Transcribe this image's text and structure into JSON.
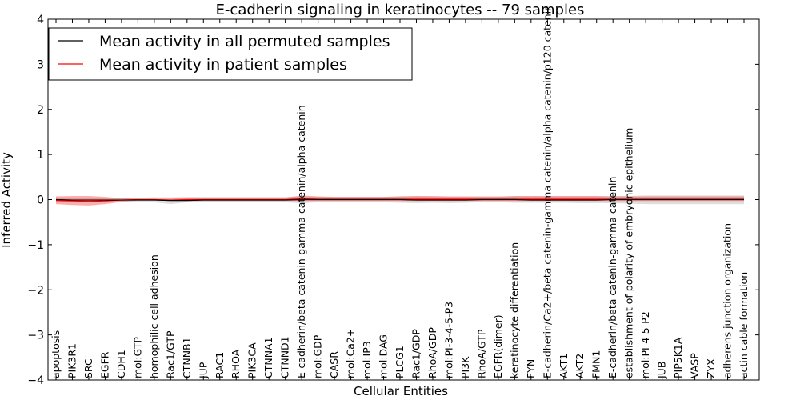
{
  "chart_data": {
    "type": "line",
    "title": "E-cadherin signaling in keratinocytes -- 79 samples",
    "xlabel": "Cellular Entities",
    "ylabel": "Inferred Activity",
    "ylim": [
      -4,
      4
    ],
    "yticks": [
      4,
      3,
      2,
      1,
      0,
      -1,
      -2,
      -3,
      -4
    ],
    "ytick_labels": [
      "4",
      "3",
      "2",
      "1",
      "0",
      "−1",
      "−2",
      "−3",
      "−4"
    ],
    "legend": {
      "location": "top-left",
      "entries": [
        {
          "label": "Mean activity in all permuted samples",
          "color": "#000000"
        },
        {
          "label": "Mean activity in patient samples",
          "color": "#ff0000"
        }
      ]
    },
    "categories": [
      "apoptosis",
      "PIK3R1",
      "SRC",
      "EGFR",
      "CDH1",
      "mol:GTP",
      "homophilic cell adhesion",
      "Rac1/GTP",
      "CTNNB1",
      "JUP",
      "RAC1",
      "RHOA",
      "PIK3CA",
      "CTNNA1",
      "CTNND1",
      "E-cadherin/beta catenin-gamma catenin/alpha catenin",
      "mol:GDP",
      "CASR",
      "mol:Ca2+",
      "mol:IP3",
      "mol:DAG",
      "PLCG1",
      "Rac1/GDP",
      "RhoA/GDP",
      "mol:PI-3-4-5-P3",
      "PI3K",
      "RhoA/GTP",
      "EGFR(dimer)",
      "keratinocyte differentiation",
      "FYN",
      "E-cadherin/Ca2+/beta catenin-gamma catenin/alpha catenin/p120 catenin",
      "AKT1",
      "AKT2",
      "FMN1",
      "E-cadherin/beta catenin-gamma catenin",
      "establishment of polarity of embryonic epithelium",
      "mol:PI-4-5-P2",
      "JUB",
      "PIP5K1A",
      "VASP",
      "ZYX",
      "adherens junction organization",
      "actin cable formation"
    ],
    "series": [
      {
        "name": "Mean activity in all permuted samples",
        "color": "#000000",
        "values": [
          0.0,
          -0.01,
          -0.01,
          -0.01,
          -0.01,
          -0.01,
          -0.01,
          -0.02,
          -0.02,
          -0.01,
          -0.01,
          -0.01,
          -0.01,
          -0.01,
          -0.01,
          0.0,
          0.0,
          0.0,
          0.0,
          0.0,
          0.0,
          0.0,
          -0.01,
          -0.01,
          -0.01,
          -0.01,
          0.0,
          0.0,
          0.0,
          -0.01,
          -0.01,
          -0.01,
          -0.01,
          -0.01,
          0.0,
          0.0,
          0.0,
          0.0,
          0.0,
          0.0,
          0.0,
          0.0,
          0.0
        ],
        "band_lower": [
          -0.05,
          -0.04,
          -0.04,
          -0.04,
          -0.03,
          -0.05,
          -0.06,
          -0.1,
          -0.06,
          -0.06,
          -0.06,
          -0.06,
          -0.06,
          -0.06,
          -0.06,
          -0.08,
          -0.06,
          -0.06,
          -0.06,
          -0.06,
          -0.06,
          -0.07,
          -0.08,
          -0.07,
          -0.08,
          -0.07,
          -0.06,
          -0.06,
          -0.07,
          -0.07,
          -0.07,
          -0.07,
          -0.08,
          -0.08,
          -0.08,
          -0.09,
          -0.1,
          -0.1,
          -0.1,
          -0.1,
          -0.1,
          -0.1,
          -0.1
        ],
        "band_upper": [
          0.05,
          0.04,
          0.04,
          0.04,
          0.03,
          0.04,
          0.05,
          0.05,
          0.06,
          0.06,
          0.06,
          0.06,
          0.06,
          0.06,
          0.06,
          0.07,
          0.06,
          0.06,
          0.06,
          0.06,
          0.06,
          0.07,
          0.07,
          0.06,
          0.06,
          0.06,
          0.06,
          0.06,
          0.07,
          0.07,
          0.07,
          0.07,
          0.07,
          0.07,
          0.08,
          0.08,
          0.09,
          0.09,
          0.09,
          0.09,
          0.09,
          0.09,
          0.09
        ]
      },
      {
        "name": "Mean activity in patient samples",
        "color": "#ff0000",
        "values": [
          -0.02,
          -0.03,
          -0.04,
          -0.03,
          -0.01,
          0.0,
          0.0,
          -0.01,
          0.0,
          0.0,
          0.0,
          0.0,
          0.0,
          0.0,
          0.0,
          0.02,
          0.01,
          0.01,
          0.01,
          0.01,
          0.01,
          0.01,
          0.01,
          0.01,
          0.01,
          0.01,
          0.01,
          0.01,
          0.01,
          0.01,
          0.01,
          0.01,
          0.01,
          0.01,
          0.01,
          0.01,
          0.01,
          0.01,
          0.01,
          0.01,
          0.01,
          0.01,
          0.01
        ],
        "band_lower": [
          -0.1,
          -0.12,
          -0.13,
          -0.1,
          -0.05,
          -0.02,
          -0.02,
          -0.03,
          -0.03,
          -0.03,
          -0.03,
          -0.03,
          -0.03,
          -0.03,
          -0.03,
          -0.03,
          -0.03,
          -0.03,
          -0.03,
          -0.03,
          -0.03,
          -0.03,
          -0.03,
          -0.03,
          -0.03,
          -0.03,
          -0.03,
          -0.03,
          -0.03,
          -0.03,
          -0.03,
          -0.03,
          -0.03,
          -0.03,
          -0.03,
          -0.03,
          -0.03,
          -0.03,
          -0.03,
          -0.03,
          -0.03,
          -0.03,
          -0.03
        ],
        "band_upper": [
          0.07,
          0.08,
          0.08,
          0.06,
          0.03,
          0.02,
          0.02,
          0.02,
          0.04,
          0.04,
          0.04,
          0.04,
          0.04,
          0.04,
          0.04,
          0.09,
          0.07,
          0.06,
          0.06,
          0.06,
          0.06,
          0.07,
          0.08,
          0.08,
          0.07,
          0.07,
          0.07,
          0.07,
          0.08,
          0.08,
          0.08,
          0.08,
          0.08,
          0.08,
          0.07,
          0.07,
          0.07,
          0.07,
          0.07,
          0.07,
          0.07,
          0.07,
          0.07
        ]
      }
    ]
  }
}
